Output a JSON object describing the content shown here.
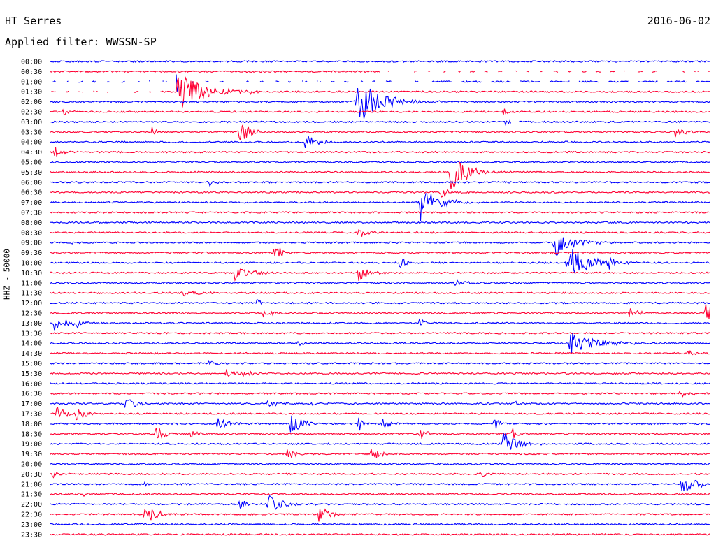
{
  "header": {
    "station": "HT Serres",
    "date": "2016-06-02",
    "filter_label": "Applied filter: WWSSN-SP"
  },
  "chart_data": {
    "type": "line",
    "title": "HT Serres",
    "subtitle": "Applied filter: WWSSN-SP",
    "ylabel": "HHZ - 50000",
    "xlabel": "",
    "grid": false,
    "x_unit": "minutes into row",
    "x_range": [
      0,
      30
    ],
    "row_labels": [
      "00:00",
      "00:30",
      "01:00",
      "01:30",
      "02:00",
      "02:30",
      "03:00",
      "03:30",
      "04:00",
      "04:30",
      "05:00",
      "05:30",
      "06:00",
      "06:30",
      "07:00",
      "07:30",
      "08:00",
      "08:30",
      "09:00",
      "09:30",
      "10:00",
      "10:30",
      "11:00",
      "11:30",
      "12:00",
      "12:30",
      "13:00",
      "13:30",
      "14:00",
      "14:30",
      "15:00",
      "15:30",
      "16:00",
      "16:30",
      "17:00",
      "17:30",
      "18:00",
      "18:30",
      "19:00",
      "19:30",
      "20:00",
      "20:30",
      "21:00",
      "21:30",
      "22:00",
      "22:30",
      "23:00",
      "23:30"
    ],
    "series_colors": [
      "#0000ff",
      "#ff0033"
    ],
    "events": [
      {
        "row": "01:00",
        "t": 5.7,
        "amp": 1.5,
        "dur": 0.6
      },
      {
        "row": "01:30",
        "t": 5.8,
        "amp": 2.6,
        "dur": 1.4
      },
      {
        "row": "01:30",
        "t": 1.6,
        "amp": 0.5,
        "dur": 0.3
      },
      {
        "row": "01:30",
        "t": 9.0,
        "amp": 0.4,
        "dur": 0.4
      },
      {
        "row": "02:00",
        "t": 13.9,
        "amp": 2.8,
        "dur": 1.4
      },
      {
        "row": "02:30",
        "t": 0.6,
        "amp": 0.5,
        "dur": 0.3
      },
      {
        "row": "02:30",
        "t": 20.6,
        "amp": 0.5,
        "dur": 0.3
      },
      {
        "row": "03:00",
        "t": 20.7,
        "amp": 0.6,
        "dur": 0.2
      },
      {
        "row": "03:30",
        "t": 4.6,
        "amp": 0.6,
        "dur": 0.3
      },
      {
        "row": "03:30",
        "t": 8.6,
        "amp": 1.1,
        "dur": 0.7
      },
      {
        "row": "03:30",
        "t": 28.4,
        "amp": 0.7,
        "dur": 0.6
      },
      {
        "row": "04:00",
        "t": 11.6,
        "amp": 1.0,
        "dur": 0.6
      },
      {
        "row": "04:30",
        "t": 0.2,
        "amp": 0.8,
        "dur": 0.4
      },
      {
        "row": "05:30",
        "t": 18.2,
        "amp": 2.2,
        "dur": 1.0
      },
      {
        "row": "06:00",
        "t": 7.2,
        "amp": 0.6,
        "dur": 0.3
      },
      {
        "row": "06:30",
        "t": 17.8,
        "amp": 0.8,
        "dur": 0.4
      },
      {
        "row": "07:00",
        "t": 16.8,
        "amp": 2.2,
        "dur": 1.0
      },
      {
        "row": "08:30",
        "t": 14.0,
        "amp": 0.6,
        "dur": 0.6
      },
      {
        "row": "09:00",
        "t": 22.9,
        "amp": 2.0,
        "dur": 1.0
      },
      {
        "row": "09:00",
        "t": 1.0,
        "amp": 0.5,
        "dur": 0.3
      },
      {
        "row": "09:30",
        "t": 10.2,
        "amp": 0.9,
        "dur": 0.5
      },
      {
        "row": "10:00",
        "t": 15.9,
        "amp": 1.0,
        "dur": 0.3
      },
      {
        "row": "10:00",
        "t": 23.5,
        "amp": 2.1,
        "dur": 1.2
      },
      {
        "row": "10:00",
        "t": 25.4,
        "amp": 0.8,
        "dur": 0.3
      },
      {
        "row": "10:30",
        "t": 8.4,
        "amp": 1.0,
        "dur": 0.8
      },
      {
        "row": "10:30",
        "t": 14.0,
        "amp": 1.0,
        "dur": 0.7
      },
      {
        "row": "11:00",
        "t": 18.3,
        "amp": 0.4,
        "dur": 0.8
      },
      {
        "row": "11:30",
        "t": 6.0,
        "amp": 0.4,
        "dur": 0.8
      },
      {
        "row": "12:00",
        "t": 9.4,
        "amp": 0.6,
        "dur": 0.3
      },
      {
        "row": "12:30",
        "t": 9.7,
        "amp": 1.0,
        "dur": 0.4
      },
      {
        "row": "12:30",
        "t": 26.3,
        "amp": 0.7,
        "dur": 0.5
      },
      {
        "row": "12:30",
        "t": 29.8,
        "amp": 1.2,
        "dur": 0.4
      },
      {
        "row": "13:00",
        "t": 0.2,
        "amp": 1.0,
        "dur": 0.8
      },
      {
        "row": "13:00",
        "t": 1.2,
        "amp": 0.7,
        "dur": 0.3
      },
      {
        "row": "13:00",
        "t": 16.8,
        "amp": 0.6,
        "dur": 0.3
      },
      {
        "row": "14:00",
        "t": 23.6,
        "amp": 1.6,
        "dur": 1.4
      },
      {
        "row": "14:00",
        "t": 11.3,
        "amp": 0.5,
        "dur": 0.2
      },
      {
        "row": "14:30",
        "t": 29.0,
        "amp": 0.5,
        "dur": 0.3
      },
      {
        "row": "15:00",
        "t": 7.2,
        "amp": 0.5,
        "dur": 0.4
      },
      {
        "row": "15:30",
        "t": 8.0,
        "amp": 0.7,
        "dur": 0.4
      },
      {
        "row": "15:30",
        "t": 8.7,
        "amp": 0.7,
        "dur": 0.4
      },
      {
        "row": "16:30",
        "t": 28.5,
        "amp": 0.7,
        "dur": 0.6
      },
      {
        "row": "17:00",
        "t": 3.4,
        "amp": 0.9,
        "dur": 0.6
      },
      {
        "row": "17:00",
        "t": 9.9,
        "amp": 0.6,
        "dur": 0.6
      },
      {
        "row": "17:00",
        "t": 11.8,
        "amp": 0.5,
        "dur": 0.3
      },
      {
        "row": "17:00",
        "t": 21.1,
        "amp": 0.5,
        "dur": 0.3
      },
      {
        "row": "17:30",
        "t": 0.3,
        "amp": 0.9,
        "dur": 0.5
      },
      {
        "row": "17:30",
        "t": 1.2,
        "amp": 0.9,
        "dur": 0.5
      },
      {
        "row": "18:00",
        "t": 7.6,
        "amp": 0.8,
        "dur": 0.6
      },
      {
        "row": "18:00",
        "t": 10.9,
        "amp": 1.2,
        "dur": 0.8
      },
      {
        "row": "18:00",
        "t": 14.0,
        "amp": 1.1,
        "dur": 0.3
      },
      {
        "row": "18:00",
        "t": 15.1,
        "amp": 0.9,
        "dur": 0.3
      },
      {
        "row": "18:00",
        "t": 20.2,
        "amp": 1.0,
        "dur": 0.3
      },
      {
        "row": "18:30",
        "t": 4.8,
        "amp": 0.9,
        "dur": 0.5
      },
      {
        "row": "18:30",
        "t": 6.4,
        "amp": 0.6,
        "dur": 0.3
      },
      {
        "row": "18:30",
        "t": 16.8,
        "amp": 0.8,
        "dur": 0.4
      },
      {
        "row": "18:30",
        "t": 21.0,
        "amp": 0.8,
        "dur": 0.3
      },
      {
        "row": "19:00",
        "t": 20.6,
        "amp": 1.5,
        "dur": 0.8
      },
      {
        "row": "19:30",
        "t": 10.8,
        "amp": 0.8,
        "dur": 0.4
      },
      {
        "row": "19:30",
        "t": 14.6,
        "amp": 0.9,
        "dur": 0.5
      },
      {
        "row": "20:30",
        "t": 0.1,
        "amp": 0.5,
        "dur": 0.3
      },
      {
        "row": "20:30",
        "t": 19.6,
        "amp": 0.6,
        "dur": 0.3
      },
      {
        "row": "21:00",
        "t": 28.7,
        "amp": 1.2,
        "dur": 0.8
      },
      {
        "row": "21:00",
        "t": 4.2,
        "amp": 0.4,
        "dur": 0.2
      },
      {
        "row": "21:30",
        "t": 1.4,
        "amp": 0.4,
        "dur": 0.3
      },
      {
        "row": "22:00",
        "t": 8.6,
        "amp": 0.7,
        "dur": 0.4
      },
      {
        "row": "22:00",
        "t": 9.9,
        "amp": 1.0,
        "dur": 1.0
      },
      {
        "row": "22:30",
        "t": 4.3,
        "amp": 1.1,
        "dur": 0.7
      },
      {
        "row": "22:30",
        "t": 12.2,
        "amp": 0.9,
        "dur": 0.8
      }
    ],
    "gaps": [
      {
        "row": "00:30",
        "from": 15.0,
        "to": 30.0,
        "style": "dashed"
      },
      {
        "row": "01:00",
        "from": 0.0,
        "to": 17.0,
        "style": "dashed"
      },
      {
        "row": "01:00",
        "from": 17.0,
        "to": 30.0,
        "style": "partial"
      },
      {
        "row": "01:30",
        "from": 0.0,
        "to": 5.0,
        "style": "dashed"
      },
      {
        "row": "03:00",
        "from": 20.2,
        "to": 21.3,
        "style": "partial"
      }
    ]
  }
}
